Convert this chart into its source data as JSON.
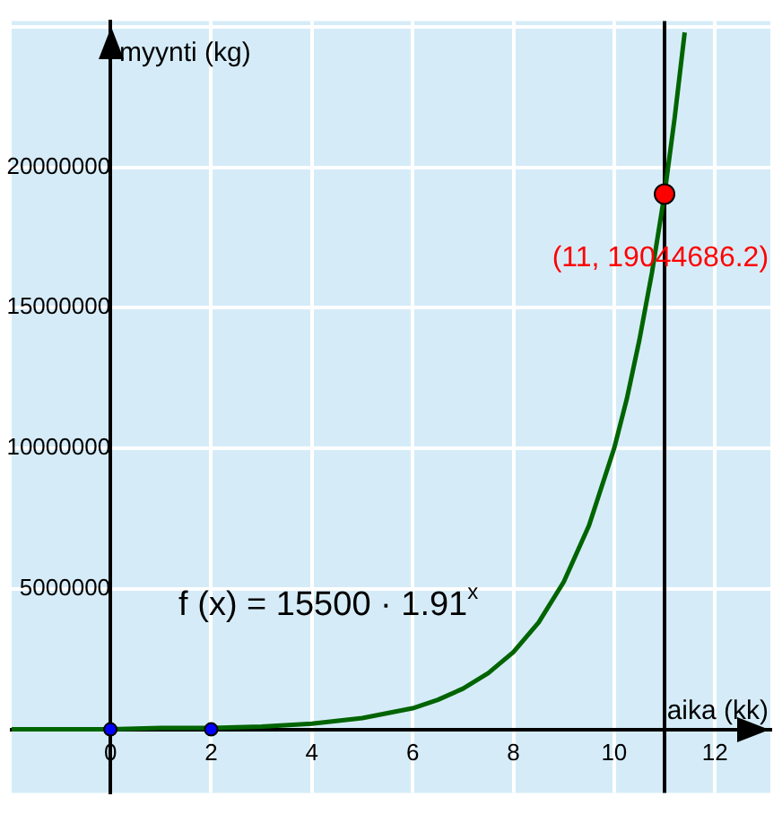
{
  "chart_data": {
    "type": "line",
    "xlabel": "aika (kk)",
    "ylabel": "myynti (kg)",
    "xlim": [
      -1.96,
      13.1
    ],
    "ylim": [
      -2260000,
      25200000
    ],
    "xticks": [
      0,
      2,
      4,
      6,
      8,
      10,
      12
    ],
    "yticks": [
      5000000,
      10000000,
      15000000,
      20000000,
      {
        "value": 25000000,
        "label": null
      }
    ],
    "grid": true,
    "legend": false,
    "marker": "none",
    "series": [
      {
        "color": "#006400",
        "x": [
          -1.96,
          -1,
          0,
          1,
          2,
          3,
          4,
          5,
          6,
          6.5,
          7,
          7.5,
          8,
          8.5,
          9,
          9.5,
          10,
          10.25,
          10.5,
          10.75,
          11,
          11.2,
          11.4
        ],
        "values": [
          0,
          0,
          0,
          50000,
          50000,
          100000,
          200000,
          400000,
          750000,
          1050000,
          1450000,
          2000000,
          2750000,
          3800000,
          5250000,
          7250000,
          10000000,
          11750000,
          13850000,
          16250000,
          19050000,
          21750000,
          24800000
        ]
      },
      {
        "type": "scatter",
        "marker": "circle",
        "color": "#0000ff",
        "x": [
          0,
          2
        ],
        "values": [
          0,
          0
        ]
      },
      {
        "type": "scatter",
        "marker": "circle",
        "color": "#ff0000",
        "x": [
          11
        ],
        "values": [
          19044686.2
        ]
      }
    ],
    "ref_lines": [
      {
        "axis": "x",
        "value": 11,
        "color": "#000000"
      }
    ],
    "annotations": [
      {
        "text": "(11, 19044686.2)",
        "x": 11,
        "y": 19044686.2
      },
      "f (x) = 15500 · 1.91$^{x}$"
    ]
  }
}
